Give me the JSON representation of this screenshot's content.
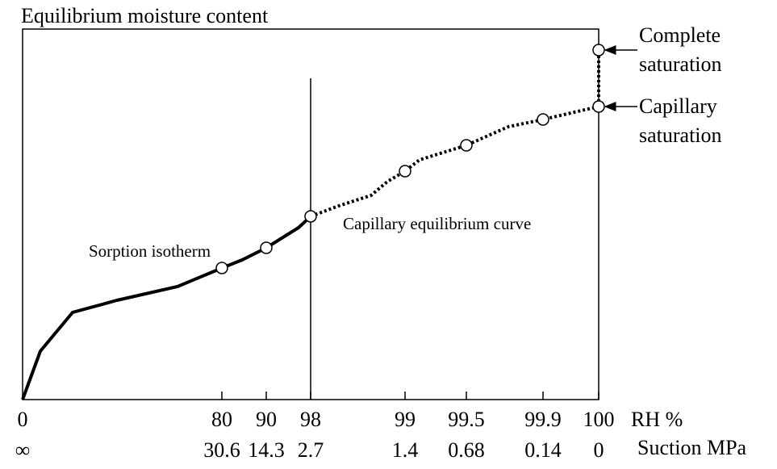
{
  "title": "Equilibrium moisture content",
  "rh_axis": {
    "ticks": [
      "0",
      "80",
      "90",
      "98",
      "99",
      "99.5",
      "99.9",
      "100"
    ],
    "unit": "RH %"
  },
  "suction_axis": {
    "ticks": [
      "∞",
      "30.6",
      "14.3",
      "2.7",
      "1.4",
      "0.68",
      "0.14",
      "0"
    ],
    "unit": "Suction MPa"
  },
  "labels": {
    "sorption": "Sorption isotherm",
    "capillary_curve": "Capillary equilibrium curve"
  },
  "annotations": {
    "complete": [
      "Complete",
      "saturation"
    ],
    "capillary": [
      "Capillary",
      "saturation"
    ]
  }
}
